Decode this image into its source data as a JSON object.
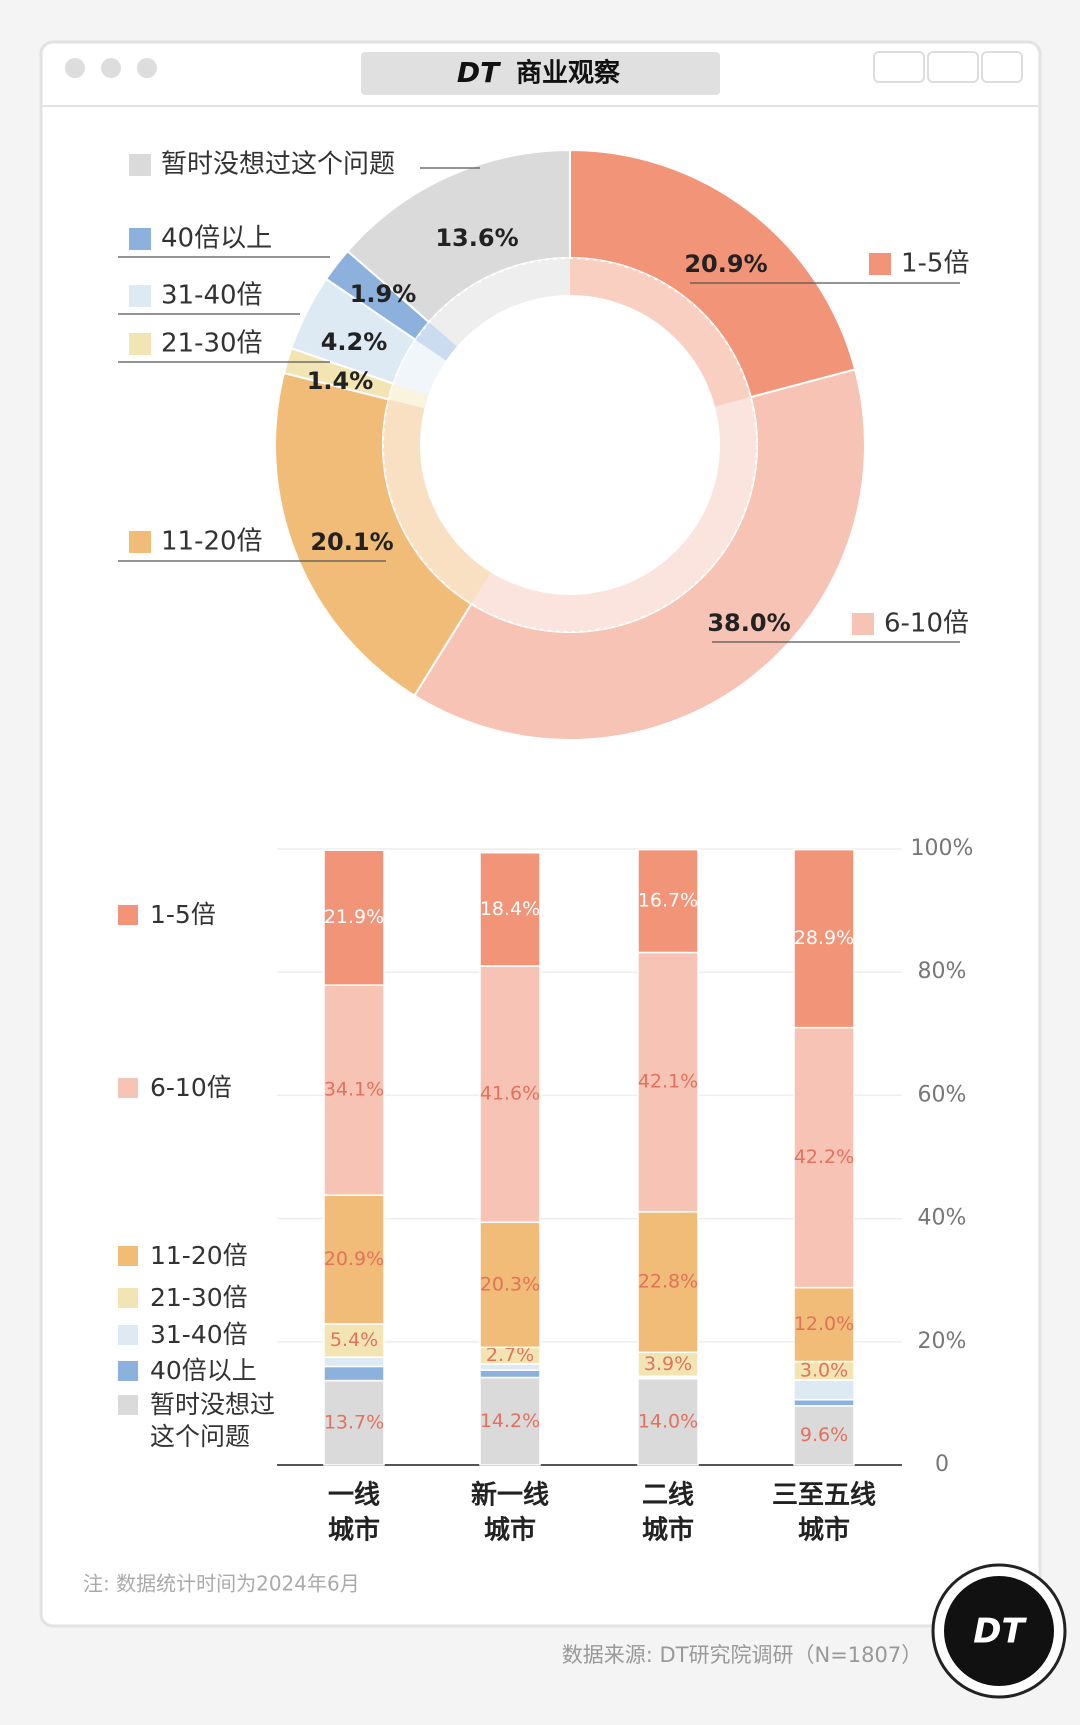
{
  "header": {
    "title": "商业观察",
    "logo": "DT"
  },
  "chart_data": [
    {
      "type": "pie",
      "categories": [
        "1-5倍",
        "6-10倍",
        "11-20倍",
        "21-30倍",
        "31-40倍",
        "40倍以上",
        "暂时没想过这个问题"
      ],
      "values": [
        20.9,
        38.0,
        20.1,
        1.4,
        4.2,
        1.9,
        13.6
      ],
      "value_labels": [
        "20.9%",
        "38.0%",
        "20.1%",
        "1.4%",
        "4.2%",
        "1.9%",
        "13.6%"
      ],
      "colors": [
        "#f29478",
        "#f6c3b5",
        "#f1bb78",
        "#f3e5b3",
        "#deeaf3",
        "#8db1dd",
        "#dadada"
      ]
    },
    {
      "type": "stacked-bar",
      "categories": [
        [
          "一线",
          "城市"
        ],
        [
          "新一线",
          "城市"
        ],
        [
          "二线",
          "城市"
        ],
        [
          "三至五线",
          "城市"
        ]
      ],
      "series": [
        {
          "name": "1-5倍",
          "color": "#f29478",
          "values": [
            21.9,
            18.4,
            16.7,
            28.9
          ],
          "value_labels": [
            "21.9%",
            "18.4%",
            "16.7%",
            "28.9%"
          ]
        },
        {
          "name": "6-10倍",
          "color": "#f6c3b5",
          "values": [
            34.1,
            41.6,
            42.1,
            42.2
          ],
          "value_labels": [
            "34.1%",
            "41.6%",
            "42.1%",
            "42.2%"
          ]
        },
        {
          "name": "11-20倍",
          "color": "#f1bb78",
          "values": [
            20.9,
            20.3,
            22.8,
            12.0
          ],
          "value_labels": [
            "20.9%",
            "20.3%",
            "22.8%",
            "12.0%"
          ]
        },
        {
          "name": "21-30倍",
          "color": "#f3e5b3",
          "values": [
            5.4,
            2.7,
            3.9,
            3.0
          ],
          "value_labels": [
            "5.4%",
            "2.7%",
            "3.9%",
            "3.0%"
          ]
        },
        {
          "name": "31-40倍",
          "color": "#deeaf3",
          "values": [
            1.5,
            1.0,
            0.2,
            3.2
          ],
          "value_labels": [
            null,
            null,
            null,
            null
          ]
        },
        {
          "name": "40倍以上",
          "color": "#8db1dd",
          "values": [
            2.3,
            1.2,
            0.2,
            1.0
          ],
          "value_labels": [
            null,
            null,
            null,
            null
          ]
        },
        {
          "name": "暂时没想过这个问题",
          "color": "#dadada",
          "values": [
            13.7,
            14.2,
            14.0,
            9.6
          ],
          "value_labels": [
            "13.7%",
            "14.2%",
            "14.0%",
            "9.6%"
          ]
        }
      ],
      "ylim": [
        0,
        100
      ],
      "yticks": [
        0,
        {
          "value": 20,
          "label": "20%"
        },
        {
          "value": 40,
          "label": "40%"
        },
        {
          "value": 60,
          "label": "60%"
        },
        {
          "value": 80,
          "label": "80%"
        },
        {
          "value": 100,
          "label": "100%"
        }
      ],
      "grid": true
    }
  ],
  "note": "注: 数据统计时间为2024年6月",
  "source": "数据来源: DT研究院调研（N=1807）",
  "badge": "DT"
}
